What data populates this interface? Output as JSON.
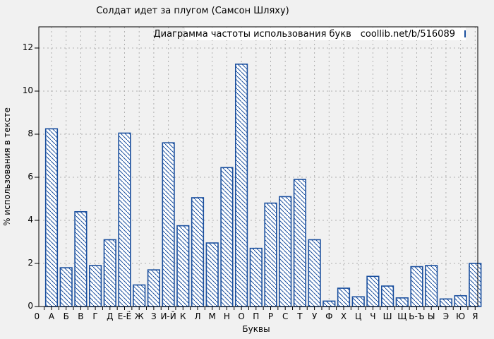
{
  "page": {
    "title": "Солдат идет за плугом (Самсон Шляху)"
  },
  "legend": {
    "label": "Диаграмма частоты использования букв",
    "source": "coollib.net/b/516089",
    "swatch_icon": "hatched-bar-sample"
  },
  "colors": {
    "bar": "#1a4f9e",
    "background": "#f1f1f1",
    "grid": "#b0b0b0",
    "axis": "#000000",
    "legend_background": "#ffffff"
  },
  "chart_data": {
    "type": "bar",
    "title": "Солдат идет за плугом (Самсон Шляху)",
    "xlabel": "Буквы",
    "ylabel": "% использования в тексте",
    "categories": [
      "0",
      "А",
      "Б",
      "В",
      "Г",
      "Д",
      "Е-Ё",
      "Ж",
      "З",
      "И-Й",
      "К",
      "Л",
      "М",
      "Н",
      "О",
      "П",
      "Р",
      "С",
      "Т",
      "У",
      "Ф",
      "Х",
      "Ц",
      "Ч",
      "Ш",
      "Щ",
      "Ь-Ъ",
      "Ы",
      "Э",
      "Ю",
      "Я"
    ],
    "values": [
      0,
      8.25,
      1.8,
      4.4,
      1.9,
      3.1,
      8.05,
      1.0,
      1.7,
      7.6,
      3.75,
      5.05,
      2.95,
      6.45,
      11.25,
      2.7,
      4.8,
      5.1,
      5.9,
      3.1,
      0.25,
      0.85,
      0.45,
      1.4,
      0.95,
      0.4,
      1.85,
      1.9,
      0.35,
      0.5,
      2.0
    ],
    "ylim": [
      0,
      13
    ],
    "yticks": [
      0,
      2,
      4,
      6,
      8,
      10,
      12
    ],
    "grid": true,
    "grid_style": "dashed",
    "bar_fill": "white-with-backslash-hatch",
    "legend_position": "top-inside",
    "legend_label": "Диаграмма частоты использования букв  coollib.net/b/516089"
  }
}
